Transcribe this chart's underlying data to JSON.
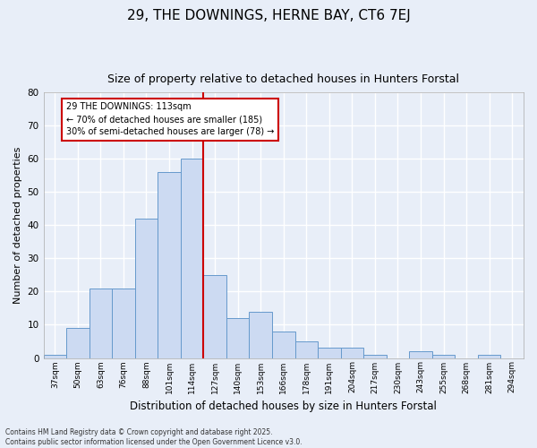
{
  "title1": "29, THE DOWNINGS, HERNE BAY, CT6 7EJ",
  "title2": "Size of property relative to detached houses in Hunters Forstal",
  "xlabel": "Distribution of detached houses by size in Hunters Forstal",
  "ylabel": "Number of detached properties",
  "categories": [
    "37sqm",
    "50sqm",
    "63sqm",
    "76sqm",
    "88sqm",
    "101sqm",
    "114sqm",
    "127sqm",
    "140sqm",
    "153sqm",
    "166sqm",
    "178sqm",
    "191sqm",
    "204sqm",
    "217sqm",
    "230sqm",
    "243sqm",
    "255sqm",
    "268sqm",
    "281sqm",
    "294sqm"
  ],
  "bar_values": [
    1,
    9,
    21,
    21,
    42,
    56,
    60,
    25,
    12,
    14,
    8,
    5,
    3,
    3,
    1,
    0,
    2,
    1,
    0,
    1,
    0
  ],
  "bar_color": "#ccdaf2",
  "bar_edge_color": "#6699cc",
  "red_line_x": 6.5,
  "ylim": [
    0,
    80
  ],
  "yticks": [
    0,
    10,
    20,
    30,
    40,
    50,
    60,
    70,
    80
  ],
  "annotation_text": "29 THE DOWNINGS: 113sqm\n← 70% of detached houses are smaller (185)\n30% of semi-detached houses are larger (78) →",
  "annotation_box_color": "#ffffff",
  "annotation_box_edge": "#cc0000",
  "footnote1": "Contains HM Land Registry data © Crown copyright and database right 2025.",
  "footnote2": "Contains public sector information licensed under the Open Government Licence v3.0.",
  "background_color": "#e8eef8",
  "grid_color": "#ffffff",
  "title1_fontsize": 11,
  "title2_fontsize": 9,
  "ylabel_fontsize": 8,
  "xlabel_fontsize": 8.5
}
